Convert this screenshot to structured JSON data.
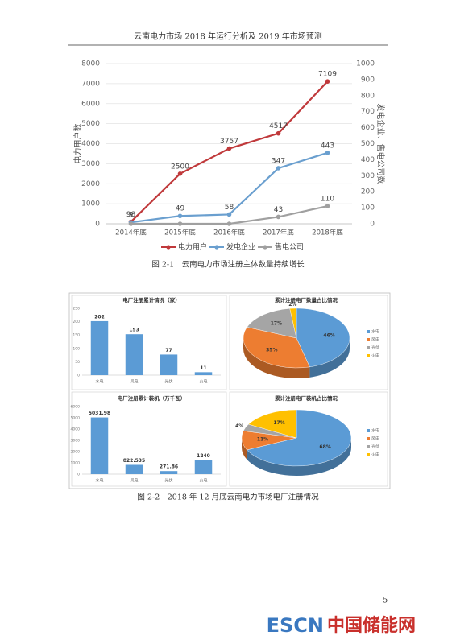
{
  "header": {
    "title": "云南电力市场 2018 年运行分析及 2019 年市场预测"
  },
  "chart_data": [
    {
      "type": "line",
      "categories": [
        "2014年底",
        "2015年底",
        "2016年底",
        "2017年底",
        "2018年底"
      ],
      "series": [
        {
          "name": "电力用户",
          "color": "#c0393b",
          "values": [
            98,
            2500,
            3757,
            4517,
            7109
          ]
        },
        {
          "name": "发电企业",
          "color": "#6a9fcf",
          "axis": "y2",
          "values": [
            9,
            49,
            58,
            347,
            443
          ]
        },
        {
          "name": "售电公司",
          "color": "#a0a0a0",
          "axis": "y2",
          "values": [
            0,
            0,
            0,
            43,
            110
          ],
          "value_labels": [
            null,
            null,
            null,
            "43",
            "110"
          ]
        }
      ],
      "ylabel": "电力用户数",
      "y2label": "发电企业、售电公司数",
      "ylim": [
        0,
        8000
      ],
      "yticks": [
        0,
        1000,
        2000,
        3000,
        4000,
        5000,
        6000,
        7000,
        8000
      ],
      "y2lim": [
        0,
        1000
      ],
      "y2ticks": [
        0,
        100,
        200,
        300,
        400,
        500,
        600,
        700,
        800,
        900,
        1000
      ],
      "grid": true,
      "legend": "bottom"
    },
    {
      "type": "bar",
      "title": "电厂注册累计情况（家）",
      "categories": [
        "水电",
        "风电",
        "光伏",
        "火电"
      ],
      "values": [
        202,
        153,
        77,
        11
      ],
      "color": "#5b9bd5",
      "ylim": [
        0,
        250
      ],
      "yticks": [
        0,
        50,
        100,
        150,
        200,
        250
      ],
      "grid": false
    },
    {
      "type": "pie",
      "title": "累计注册电厂数量占比情况",
      "categories": [
        "水电",
        "风电",
        "光伏",
        "火电"
      ],
      "values": [
        46,
        35,
        17,
        2
      ],
      "value_labels": [
        "46%",
        "35%",
        "17%",
        "2%"
      ],
      "colors": [
        "#5b9bd5",
        "#ed7d31",
        "#a5a5a5",
        "#ffc000"
      ],
      "legend": "right"
    },
    {
      "type": "bar",
      "title": "电厂注册累计装机（万千瓦）",
      "categories": [
        "水电",
        "风电",
        "光伏",
        "火电"
      ],
      "values": [
        5031.98,
        822.535,
        271.86,
        1240
      ],
      "color": "#5b9bd5",
      "ylim": [
        0,
        6000
      ],
      "yticks": [
        0,
        1000,
        2000,
        3000,
        4000,
        5000,
        6000
      ],
      "grid": false
    },
    {
      "type": "pie",
      "title": "累计注册电厂装机占比情况",
      "categories": [
        "水电",
        "风电",
        "光伏",
        "火电"
      ],
      "values": [
        68,
        11,
        4,
        17
      ],
      "value_labels": [
        "68%",
        "11%",
        "4%",
        "17%"
      ],
      "colors": [
        "#5b9bd5",
        "#ed7d31",
        "#a5a5a5",
        "#ffc000"
      ],
      "legend": "right"
    }
  ],
  "captions": [
    "图 2-1　云南电力市场注册主体数量持续增长",
    "图 2-2　2018 年 12 月底云南电力市场电厂注册情况"
  ],
  "page_number": "5",
  "watermark": {
    "brand": "ESCN",
    "name": "中国储能网"
  }
}
